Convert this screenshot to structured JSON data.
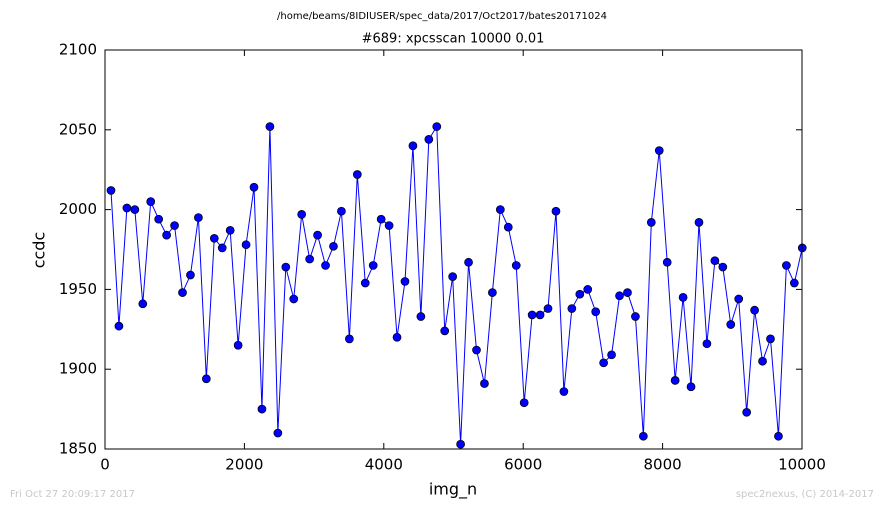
{
  "chart_data": {
    "type": "line",
    "title": "/home/beams/8IDIUSER/spec_data/2017/Oct2017/bates20171024",
    "subtitle": "#689: xpcsscan 10000 0.01",
    "xlabel": "img_n",
    "ylabel": "ccdc",
    "color": "#0000ff",
    "marker": "circle",
    "x": [
      86,
      200,
      314,
      428,
      542,
      656,
      770,
      884,
      998,
      1112,
      1226,
      1340,
      1454,
      1568,
      1682,
      1796,
      1910,
      2024,
      2138,
      2252,
      2366,
      2480,
      2594,
      2708,
      2822,
      2936,
      3050,
      3164,
      3278,
      3392,
      3506,
      3620,
      3734,
      3848,
      3962,
      4076,
      4190,
      4304,
      4418,
      4532,
      4646,
      4760,
      4874,
      4988,
      5102,
      5216,
      5330,
      5444,
      5558,
      5672,
      5786,
      5900,
      6014,
      6128,
      6242,
      6356,
      6470,
      6584,
      6698,
      6812,
      6926,
      7040,
      7154,
      7268,
      7382,
      7496,
      7610,
      7724,
      7838,
      7952,
      8066,
      8180,
      8294,
      8408,
      8522,
      8636,
      8750,
      8864,
      8978,
      9092,
      9206,
      9320,
      9434,
      9548,
      9662,
      9776,
      9890,
      10004
    ],
    "values": [
      2012,
      1927,
      2001,
      2000,
      1941,
      2005,
      1994,
      1984,
      1990,
      1948,
      1959,
      1995,
      1894,
      1982,
      1976,
      1987,
      1915,
      1978,
      2014,
      1875,
      2052,
      1860,
      1964,
      1944,
      1997,
      1969,
      1984,
      1965,
      1977,
      1999,
      1919,
      2022,
      1954,
      1965,
      1994,
      1990,
      1920,
      1955,
      2040,
      1933,
      2044,
      2052,
      1924,
      1958,
      1853,
      1967,
      1912,
      1891,
      1948,
      2000,
      1989,
      1965,
      1879,
      1934,
      1934,
      1938,
      1999,
      1886,
      1938,
      1947,
      1950,
      1936,
      1904,
      1909,
      1946,
      1948,
      1933,
      1858,
      1992,
      2037,
      1967,
      1893,
      1945,
      1889,
      1992,
      1916,
      1968,
      1964,
      1928,
      1944,
      1873,
      1937,
      1905,
      1919,
      1858,
      1965,
      1954,
      1976
    ],
    "xlim": [
      0,
      10000
    ],
    "xticks": [
      0,
      2000,
      4000,
      6000,
      8000,
      10000
    ],
    "ylim": [
      1850,
      2100
    ],
    "yticks": [
      1850,
      1900,
      1950,
      2000,
      2050,
      2100
    ],
    "grid": false
  },
  "footer": {
    "timestamp": "Fri Oct 27 20:09:17 2017",
    "credit": "spec2nexus, (C) 2014-2017"
  }
}
